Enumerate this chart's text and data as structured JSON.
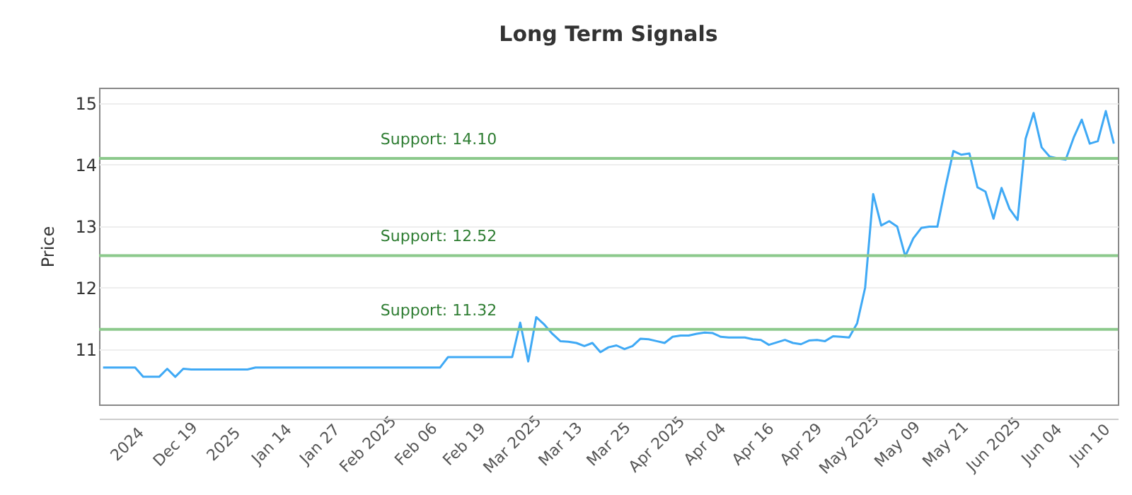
{
  "chart_data": {
    "type": "line",
    "title": "Long Term Signals",
    "ylabel": "Price",
    "categories": [
      null,
      null,
      null,
      "2024",
      null,
      null,
      null,
      null,
      null,
      "Dec 19",
      null,
      null,
      null,
      null,
      null,
      "2025",
      null,
      null,
      null,
      null,
      null,
      "Jan 14",
      null,
      null,
      null,
      null,
      null,
      "Jan 27",
      null,
      null,
      null,
      null,
      null,
      "Feb 2025",
      null,
      null,
      null,
      null,
      null,
      "Feb 06",
      null,
      null,
      null,
      null,
      null,
      "Feb 19",
      null,
      null,
      null,
      null,
      null,
      "Mar 2025",
      null,
      null,
      null,
      null,
      null,
      "Mar 13",
      null,
      null,
      null,
      null,
      null,
      "Mar 25",
      null,
      null,
      null,
      null,
      null,
      "Apr 2025",
      null,
      null,
      null,
      null,
      null,
      "Apr 04",
      null,
      null,
      null,
      null,
      null,
      "Apr 16",
      null,
      null,
      null,
      null,
      null,
      "Apr 29",
      null,
      null,
      null,
      null,
      null,
      "May 2025",
      null,
      null,
      null,
      null,
      null,
      "May 09",
      null,
      null,
      null,
      null,
      null,
      "May 21",
      null,
      null,
      null,
      null,
      null,
      "Jun 2025",
      null,
      null,
      null,
      null,
      null,
      "Jun 04",
      null,
      null,
      null,
      null,
      null,
      "Jun 10",
      null,
      null,
      null
    ],
    "series": [
      {
        "color": "#3fa9f5",
        "values": [
          10.7,
          10.7,
          10.7,
          10.7,
          10.7,
          10.55,
          10.55,
          10.55,
          10.68,
          10.55,
          10.68,
          10.67,
          10.67,
          10.67,
          10.67,
          10.67,
          10.67,
          10.67,
          10.67,
          10.7,
          10.7,
          10.7,
          10.7,
          10.7,
          10.7,
          10.7,
          10.7,
          10.7,
          10.7,
          10.7,
          10.7,
          10.7,
          10.7,
          10.7,
          10.7,
          10.7,
          10.7,
          10.7,
          10.7,
          10.7,
          10.7,
          10.7,
          10.7,
          10.87,
          10.87,
          10.87,
          10.87,
          10.87,
          10.87,
          10.87,
          10.87,
          10.87,
          11.43,
          10.8,
          11.52,
          11.4,
          11.25,
          11.13,
          11.12,
          11.1,
          11.05,
          11.1,
          10.95,
          11.03,
          11.06,
          11.0,
          11.05,
          11.17,
          11.16,
          11.13,
          11.1,
          11.2,
          11.22,
          11.22,
          11.25,
          11.27,
          11.26,
          11.2,
          11.19,
          11.19,
          11.19,
          11.16,
          11.15,
          11.07,
          11.11,
          11.15,
          11.1,
          11.08,
          11.14,
          11.15,
          11.13,
          11.21,
          11.2,
          11.19,
          11.42,
          12.0,
          13.52,
          13.01,
          13.08,
          12.99,
          12.51,
          12.8,
          12.97,
          12.99,
          12.99,
          13.63,
          14.22,
          14.16,
          14.18,
          13.63,
          13.56,
          13.12,
          13.62,
          13.28,
          13.1,
          14.42,
          14.84,
          14.28,
          14.13,
          14.1,
          14.08,
          14.44,
          14.73,
          14.34,
          14.38,
          14.87,
          14.34
        ]
      }
    ],
    "ylim": [
      10.1,
      15.25
    ],
    "yticks": [
      11,
      12,
      13,
      14,
      15
    ],
    "grid": "y",
    "ref_lines": [
      {
        "axis": "y",
        "value": 14.1,
        "label": "Support: 14.10",
        "color": "#8cc98c"
      },
      {
        "axis": "y",
        "value": 12.52,
        "label": "Support: 12.52",
        "color": "#8cc98c"
      },
      {
        "axis": "y",
        "value": 11.32,
        "label": "Support: 11.32",
        "color": "#8cc98c"
      }
    ]
  }
}
